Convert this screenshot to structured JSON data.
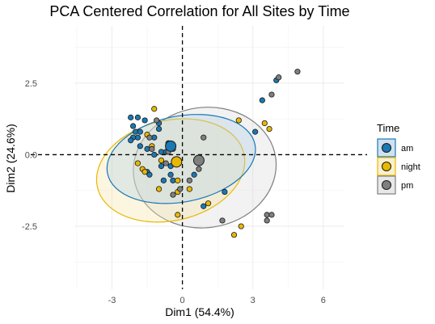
{
  "chart_data": {
    "type": "scatter",
    "title": "PCA Centered Correlation for All Sites by Time",
    "xlabel": "Dim1 (54.4%)",
    "ylabel": "Dim2 (24.6%)",
    "xlim": [
      -4.6,
      6.9
    ],
    "ylim": [
      -4.7,
      4.5
    ],
    "x_ticks": [
      -3,
      0,
      3,
      6
    ],
    "x_tick_labels": [
      "-3",
      "0",
      "3",
      "6"
    ],
    "y_ticks": [
      -2.5,
      0.0,
      2.5
    ],
    "y_tick_labels": [
      "-2.5",
      "0.0",
      "2.5"
    ],
    "grid": true,
    "reference_lines": {
      "x": 0,
      "y": 0,
      "style": "dashed"
    },
    "legend": {
      "title": "Time",
      "position": "right"
    },
    "series": [
      {
        "name": "am",
        "color": "#1a78b3",
        "centroid": [
          -0.5,
          0.3
        ],
        "ellipse": {
          "center": [
            -0.05,
            -0.15
          ],
          "rx": 6.4,
          "ry": 3.0,
          "rotate_deg": 11
        },
        "points": [
          [
            -2.2,
            1.3
          ],
          [
            -2.1,
            1.0
          ],
          [
            -2.0,
            0.8
          ],
          [
            -1.9,
            0.6
          ],
          [
            -2.1,
            0.6
          ],
          [
            -2.2,
            0.5
          ],
          [
            -1.8,
            0.8
          ],
          [
            -1.9,
            1.3
          ],
          [
            -1.6,
            1.2
          ],
          [
            -1.8,
            0.3
          ],
          [
            -1.5,
            0.2
          ],
          [
            -1.2,
            0.6
          ],
          [
            -1.0,
            1.1
          ],
          [
            -1.0,
            0.9
          ],
          [
            -0.9,
            0.1
          ],
          [
            -0.7,
            0.1
          ],
          [
            -0.6,
            0.4
          ],
          [
            -1.2,
            0.0
          ],
          [
            -1.5,
            -0.6
          ],
          [
            -1.4,
            -0.7
          ],
          [
            -0.8,
            -0.9
          ],
          [
            -0.5,
            -0.7
          ],
          [
            -0.4,
            -0.9
          ],
          [
            -0.9,
            -0.4
          ],
          [
            -0.5,
            -0.4
          ],
          [
            0.5,
            -0.7
          ],
          [
            1.8,
            -1.3
          ],
          [
            3.1,
            0.8
          ],
          [
            3.4,
            1.9
          ],
          [
            4.0,
            2.6
          ],
          [
            0.9,
            -1.8
          ]
        ]
      },
      {
        "name": "night",
        "color": "#e8b800",
        "centroid": [
          -0.25,
          -0.25
        ],
        "ellipse": {
          "center": [
            -0.5,
            -0.55
          ],
          "rx": 6.4,
          "ry": 3.5,
          "rotate_deg": 13
        },
        "points": [
          [
            -1.9,
            -0.3
          ],
          [
            -1.7,
            -0.5
          ],
          [
            -1.5,
            0.7
          ],
          [
            -1.2,
            1.6
          ],
          [
            -1.3,
            0.3
          ],
          [
            -1.0,
            -1.2
          ],
          [
            -1.6,
            -0.6
          ],
          [
            -0.9,
            -0.2
          ],
          [
            -0.2,
            -0.9
          ],
          [
            -0.2,
            -1.3
          ],
          [
            -0.2,
            -2.1
          ],
          [
            0.3,
            -1.2
          ],
          [
            1.1,
            -1.7
          ],
          [
            2.5,
            -2.5
          ],
          [
            2.2,
            -2.8
          ],
          [
            2.4,
            1.2
          ],
          [
            3.5,
            1.1
          ],
          [
            3.7,
            0.9
          ]
        ]
      },
      {
        "name": "pm",
        "color": "#7f7f7f",
        "centroid": [
          0.7,
          -0.2
        ],
        "ellipse": {
          "center": [
            0.95,
            -0.45
          ],
          "rx": 6.1,
          "ry": 4.2,
          "rotate_deg": 8
        },
        "points": [
          [
            -1.4,
            0.6
          ],
          [
            -1.3,
            0.2
          ],
          [
            -1.1,
            1.2
          ],
          [
            -0.6,
            0.1
          ],
          [
            -0.7,
            -0.3
          ],
          [
            -0.4,
            0.2
          ],
          [
            -0.4,
            -1.4
          ],
          [
            -0.1,
            -1.2
          ],
          [
            0.3,
            -0.9
          ],
          [
            0.7,
            -0.5
          ],
          [
            0.9,
            0.6
          ],
          [
            1.7,
            -2.3
          ],
          [
            3.6,
            -2.1
          ],
          [
            3.8,
            -2.1
          ],
          [
            3.6,
            -2.3
          ],
          [
            3.8,
            2.1
          ],
          [
            4.1,
            2.7
          ],
          [
            4.9,
            2.9
          ]
        ]
      }
    ]
  }
}
